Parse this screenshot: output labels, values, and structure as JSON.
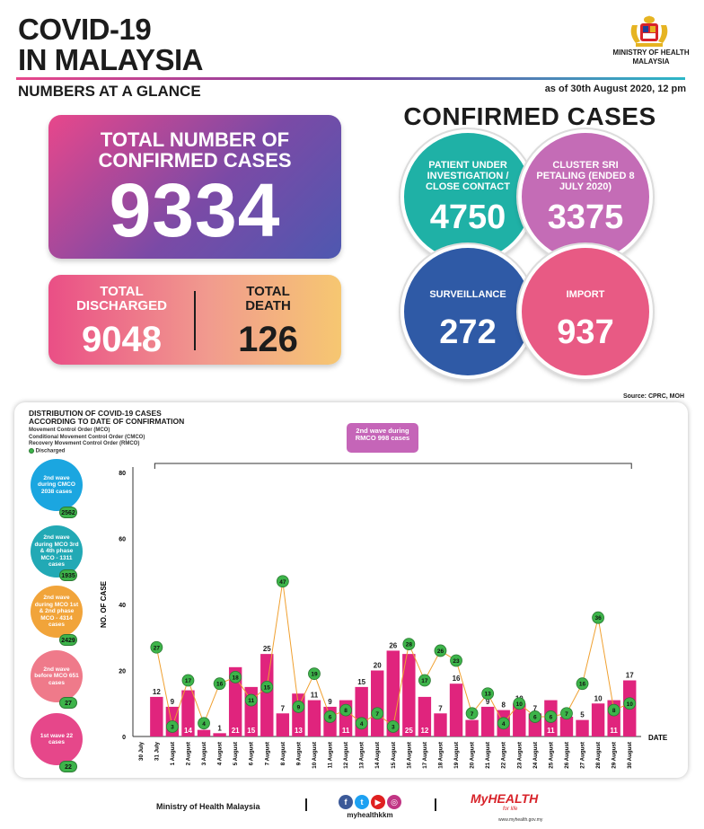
{
  "header": {
    "title_line1": "COVID-19",
    "title_line2": "IN MALAYSIA",
    "subtitle": "NUMBERS AT A GLANCE",
    "as_of": "as of 30th August 2020, 12 pm",
    "ministry_line1": "MINISTRY OF HEALTH",
    "ministry_line2": "MALAYSIA"
  },
  "totals": {
    "confirmed_label_1": "TOTAL NUMBER OF",
    "confirmed_label_2": "CONFIRMED CASES",
    "confirmed_value": "9334",
    "discharged_label_1": "TOTAL",
    "discharged_label_2": "DISCHARGED",
    "discharged_value": "9048",
    "death_label_1": "TOTAL",
    "death_label_2": "DEATH",
    "death_value": "126"
  },
  "confirmed": {
    "title": "CONFIRMED CASES",
    "pui_label": "PATIENT UNDER INVESTIGATION / CLOSE CONTACT",
    "pui_value": "4750",
    "cluster_label": "CLUSTER SRI PETALING (ENDED 8 JULY 2020)",
    "cluster_value": "3375",
    "surveillance_label": "SURVEILLANCE",
    "surveillance_value": "272",
    "import_label": "IMPORT",
    "import_value": "937"
  },
  "colors": {
    "pui": "#1fb1a6",
    "cluster": "#c46cb6",
    "surveillance": "#2f5aa6",
    "import": "#e85a84",
    "bar": "#e0247d",
    "discharged": "#3db44a",
    "line": "#f0a030"
  },
  "dist": {
    "source": "Source: CPRC, MOH",
    "title_1": "DISTRIBUTION OF COVID-19 CASES",
    "title_2": "ACCORDING TO DATE OF CONFIRMATION",
    "legend_1": "Movement Control Order (MCO)",
    "legend_2": "Conditional Movement Control Order (CMCO)",
    "legend_3": "Recovery Movement Control Order (RMCO)",
    "legend_4": "Discharged",
    "rmco_label": "2nd wave during RMCO 998 cases",
    "waves": [
      {
        "label": "2nd wave during CMCO 2038 cases",
        "badge": "2562",
        "color": "#1ba6e0"
      },
      {
        "label": "2nd wave during MCO 3rd & 4th phase MCO - 1311 cases",
        "badge": "1935",
        "color": "#22a9b5"
      },
      {
        "label": "2nd wave during MCO 1st & 2nd phase MCO - 4314 cases",
        "badge": "2429",
        "color": "#f1a43a"
      },
      {
        "label": "2nd wave before MCO 651 cases",
        "badge": "27",
        "color": "#ef7a8a"
      },
      {
        "label": "1st wave 22 cases",
        "badge": "22",
        "color": "#e6478a"
      }
    ]
  },
  "chart_data": {
    "type": "bar",
    "xlabel": "DATE",
    "ylabel": "NO. OF CASE",
    "ylim": [
      0,
      80
    ],
    "yticks": [
      0,
      20,
      40,
      60,
      80
    ],
    "categories": [
      "30 July",
      "31 July",
      "1 August",
      "2 August",
      "3 August",
      "4 August",
      "5 August",
      "6 August",
      "7 August",
      "8 August",
      "9 August",
      "10 August",
      "11 August",
      "12 August",
      "13 August",
      "14 August",
      "15 August",
      "16 August",
      "17 August",
      "18 August",
      "19 August",
      "20 August",
      "21 August",
      "22 August",
      "23 August",
      "24 August",
      "25 August",
      "26 August",
      "27 August",
      "28 August",
      "29 August",
      "30 August"
    ],
    "series": [
      {
        "name": "",
        "kind": "bar",
        "values": [
          null,
          12,
          9,
          14,
          2,
          1,
          21,
          15,
          25,
          7,
          13,
          11,
          9,
          11,
          15,
          20,
          26,
          25,
          12,
          7,
          16,
          5,
          9,
          8,
          10,
          7,
          11,
          6,
          5,
          10,
          11,
          17
        ]
      },
      {
        "name": "Discharged",
        "kind": "line",
        "values": [
          null,
          27,
          3,
          17,
          4,
          16,
          18,
          11,
          15,
          47,
          9,
          19,
          6,
          8,
          4,
          7,
          3,
          28,
          17,
          26,
          23,
          7,
          13,
          4,
          10,
          6,
          6,
          7,
          16,
          36,
          8,
          10
        ]
      }
    ]
  },
  "footer": {
    "ministry": "Ministry of Health Malaysia",
    "handle": "myhealthkkm",
    "myhealth": "MyHEALTH",
    "myhealth_sub": "for life",
    "url": "www.myhealth.gov.my"
  }
}
